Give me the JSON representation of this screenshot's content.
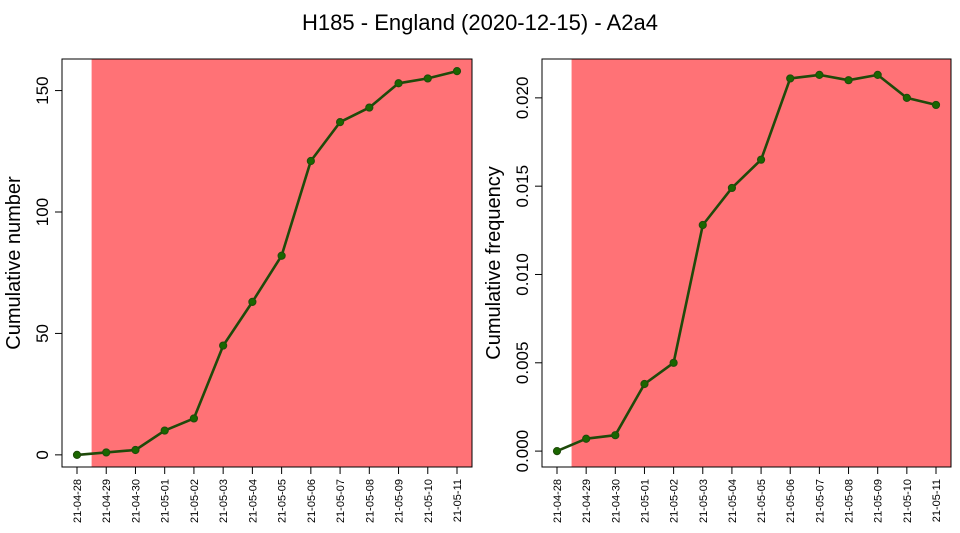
{
  "title": "H185 - England (2020-12-15) - A2a4",
  "colors": {
    "shade": "#ff7276",
    "line": "#1f4a0a",
    "marker": "#1a6600",
    "axis": "#000000"
  },
  "chart_data": [
    {
      "type": "line",
      "title": "",
      "xlabel": "",
      "ylabel": "Cumulative number",
      "categories": [
        "21-04-28",
        "21-04-29",
        "21-04-30",
        "21-05-01",
        "21-05-02",
        "21-05-03",
        "21-05-04",
        "21-05-05",
        "21-05-06",
        "21-05-07",
        "21-05-08",
        "21-05-09",
        "21-05-10",
        "21-05-11"
      ],
      "values": [
        0,
        1,
        2,
        10,
        15,
        45,
        63,
        82,
        121,
        137,
        143,
        153,
        155,
        158
      ],
      "ylim": [
        -5,
        163
      ],
      "yticks": [
        0,
        50,
        100,
        150
      ],
      "ytick_labels": [
        "0",
        "50",
        "100",
        "150"
      ],
      "shade_start_index": 0.5,
      "grid": false
    },
    {
      "type": "line",
      "title": "",
      "xlabel": "",
      "ylabel": "Cumulative frequency",
      "categories": [
        "21-04-28",
        "21-04-29",
        "21-04-30",
        "21-05-01",
        "21-05-02",
        "21-05-03",
        "21-05-04",
        "21-05-05",
        "21-05-06",
        "21-05-07",
        "21-05-08",
        "21-05-09",
        "21-05-10",
        "21-05-11"
      ],
      "values": [
        0.0,
        0.0007,
        0.0009,
        0.0038,
        0.005,
        0.0128,
        0.0149,
        0.0165,
        0.0211,
        0.0213,
        0.021,
        0.0213,
        0.02,
        0.0196
      ],
      "ylim": [
        -0.0009,
        0.0222
      ],
      "yticks": [
        0.0,
        0.005,
        0.01,
        0.015,
        0.02
      ],
      "ytick_labels": [
        "0.000",
        "0.005",
        "0.010",
        "0.015",
        "0.020"
      ],
      "shade_start_index": 0.5,
      "grid": false
    }
  ]
}
